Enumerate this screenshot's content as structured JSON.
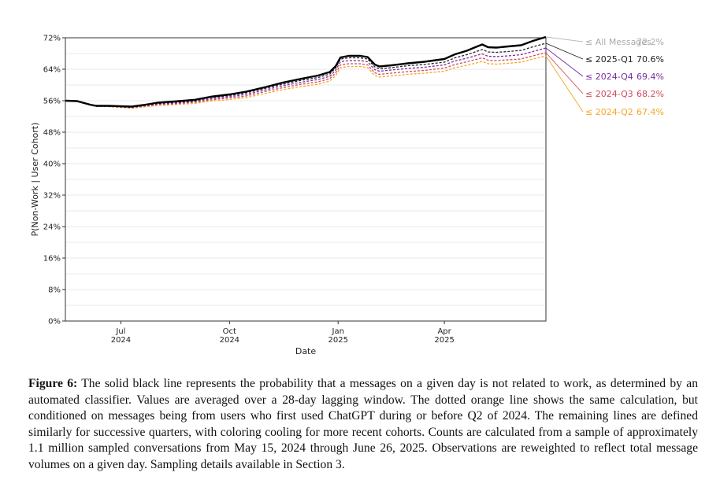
{
  "chart_data": {
    "type": "line",
    "xlabel": "Date",
    "ylabel": "P(Non-Work | User Cohort)",
    "ylim": [
      0,
      72
    ],
    "yticks": [
      0,
      8,
      16,
      24,
      32,
      40,
      48,
      56,
      64,
      72
    ],
    "ytick_labels": [
      "0%",
      "8%",
      "16%",
      "24%",
      "32%",
      "40%",
      "48%",
      "56%",
      "64%",
      "72%"
    ],
    "xlim": [
      "2024-05-15",
      "2025-06-26"
    ],
    "xticks": [
      {
        "date": "2024-07-01",
        "month": "Jul",
        "year": "2024"
      },
      {
        "date": "2024-10-01",
        "month": "Oct",
        "year": "2024"
      },
      {
        "date": "2025-01-01",
        "month": "Jan",
        "year": "2025"
      },
      {
        "date": "2025-04-01",
        "month": "Apr",
        "year": "2025"
      }
    ],
    "grid": true,
    "legend_placement": "right",
    "series": [
      {
        "name": "≤ All Messages",
        "final_label": "72.2%",
        "color": "#000000",
        "style": "solid",
        "points": [
          [
            "2024-05-15",
            56.0
          ],
          [
            "2024-05-25",
            55.9
          ],
          [
            "2024-06-05",
            55.0
          ],
          [
            "2024-06-10",
            54.7
          ],
          [
            "2024-06-20",
            54.7
          ],
          [
            "2024-06-30",
            54.6
          ],
          [
            "2024-07-10",
            54.5
          ],
          [
            "2024-07-20",
            54.9
          ],
          [
            "2024-08-01",
            55.5
          ],
          [
            "2024-08-15",
            55.8
          ],
          [
            "2024-09-01",
            56.2
          ],
          [
            "2024-09-15",
            57.0
          ],
          [
            "2024-10-01",
            57.6
          ],
          [
            "2024-10-15",
            58.3
          ],
          [
            "2024-11-01",
            59.5
          ],
          [
            "2024-11-15",
            60.6
          ],
          [
            "2024-12-01",
            61.6
          ],
          [
            "2024-12-15",
            62.4
          ],
          [
            "2024-12-25",
            63.3
          ],
          [
            "2024-12-30",
            64.8
          ],
          [
            "2025-01-03",
            67.0
          ],
          [
            "2025-01-10",
            67.4
          ],
          [
            "2025-01-20",
            67.4
          ],
          [
            "2025-01-26",
            67.1
          ],
          [
            "2025-02-01",
            65.2
          ],
          [
            "2025-02-05",
            64.7
          ],
          [
            "2025-02-15",
            65.0
          ],
          [
            "2025-03-01",
            65.5
          ],
          [
            "2025-03-15",
            65.9
          ],
          [
            "2025-04-01",
            66.6
          ],
          [
            "2025-04-10",
            67.8
          ],
          [
            "2025-04-20",
            68.7
          ],
          [
            "2025-04-28",
            69.7
          ],
          [
            "2025-05-03",
            70.3
          ],
          [
            "2025-05-08",
            69.6
          ],
          [
            "2025-05-15",
            69.5
          ],
          [
            "2025-05-25",
            69.8
          ],
          [
            "2025-06-05",
            70.1
          ],
          [
            "2025-06-15",
            71.2
          ],
          [
            "2025-06-26",
            72.2
          ]
        ]
      },
      {
        "name": "≤ 2025-Q1",
        "final_label": "70.6%",
        "color": "#222222",
        "style": "dashed",
        "points": [
          [
            "2024-05-15",
            56.0
          ],
          [
            "2024-05-25",
            55.8
          ],
          [
            "2024-06-05",
            54.9
          ],
          [
            "2024-06-10",
            54.6
          ],
          [
            "2024-06-20",
            54.6
          ],
          [
            "2024-06-30",
            54.5
          ],
          [
            "2024-07-10",
            54.4
          ],
          [
            "2024-07-20",
            54.8
          ],
          [
            "2024-08-01",
            55.3
          ],
          [
            "2024-08-15",
            55.6
          ],
          [
            "2024-09-01",
            56.0
          ],
          [
            "2024-09-15",
            56.8
          ],
          [
            "2024-10-01",
            57.3
          ],
          [
            "2024-10-15",
            58.0
          ],
          [
            "2024-11-01",
            59.2
          ],
          [
            "2024-11-15",
            60.2
          ],
          [
            "2024-12-01",
            61.2
          ],
          [
            "2024-12-15",
            61.9
          ],
          [
            "2024-12-25",
            62.8
          ],
          [
            "2024-12-30",
            64.4
          ],
          [
            "2025-01-03",
            66.6
          ],
          [
            "2025-01-10",
            66.9
          ],
          [
            "2025-01-20",
            66.9
          ],
          [
            "2025-01-26",
            66.6
          ],
          [
            "2025-02-01",
            64.6
          ],
          [
            "2025-02-05",
            64.1
          ],
          [
            "2025-02-15",
            64.4
          ],
          [
            "2025-03-01",
            64.9
          ],
          [
            "2025-03-15",
            65.2
          ],
          [
            "2025-04-01",
            65.8
          ],
          [
            "2025-04-10",
            66.9
          ],
          [
            "2025-04-20",
            67.7
          ],
          [
            "2025-04-28",
            68.5
          ],
          [
            "2025-05-03",
            69.0
          ],
          [
            "2025-05-08",
            68.4
          ],
          [
            "2025-05-15",
            68.3
          ],
          [
            "2025-05-25",
            68.5
          ],
          [
            "2025-06-05",
            68.8
          ],
          [
            "2025-06-15",
            69.7
          ],
          [
            "2025-06-26",
            70.6
          ]
        ]
      },
      {
        "name": "≤ 2024-Q4",
        "final_label": "69.4%",
        "color": "#7b2d9e",
        "style": "dashed",
        "points": [
          [
            "2024-05-15",
            56.0
          ],
          [
            "2024-05-25",
            55.8
          ],
          [
            "2024-06-05",
            54.9
          ],
          [
            "2024-06-10",
            54.6
          ],
          [
            "2024-06-20",
            54.6
          ],
          [
            "2024-06-30",
            54.5
          ],
          [
            "2024-07-10",
            54.3
          ],
          [
            "2024-07-20",
            54.7
          ],
          [
            "2024-08-01",
            55.2
          ],
          [
            "2024-08-15",
            55.4
          ],
          [
            "2024-09-01",
            55.8
          ],
          [
            "2024-09-15",
            56.5
          ],
          [
            "2024-10-01",
            57.0
          ],
          [
            "2024-10-15",
            57.6
          ],
          [
            "2024-11-01",
            58.8
          ],
          [
            "2024-11-15",
            59.8
          ],
          [
            "2024-12-01",
            60.7
          ],
          [
            "2024-12-15",
            61.4
          ],
          [
            "2024-12-25",
            62.2
          ],
          [
            "2024-12-30",
            63.8
          ],
          [
            "2025-01-03",
            65.9
          ],
          [
            "2025-01-10",
            66.2
          ],
          [
            "2025-01-20",
            66.2
          ],
          [
            "2025-01-26",
            65.9
          ],
          [
            "2025-02-01",
            63.9
          ],
          [
            "2025-02-05",
            63.5
          ],
          [
            "2025-02-15",
            63.8
          ],
          [
            "2025-03-01",
            64.2
          ],
          [
            "2025-03-15",
            64.5
          ],
          [
            "2025-04-01",
            65.1
          ],
          [
            "2025-04-10",
            66.1
          ],
          [
            "2025-04-20",
            66.8
          ],
          [
            "2025-04-28",
            67.5
          ],
          [
            "2025-05-03",
            67.9
          ],
          [
            "2025-05-08",
            67.3
          ],
          [
            "2025-05-15",
            67.2
          ],
          [
            "2025-05-25",
            67.4
          ],
          [
            "2025-06-05",
            67.7
          ],
          [
            "2025-06-15",
            68.5
          ],
          [
            "2025-06-26",
            69.4
          ]
        ]
      },
      {
        "name": "≤ 2024-Q3",
        "final_label": "68.2%",
        "color": "#d1495b",
        "style": "dashed",
        "points": [
          [
            "2024-05-15",
            56.0
          ],
          [
            "2024-05-25",
            55.8
          ],
          [
            "2024-06-05",
            54.9
          ],
          [
            "2024-06-10",
            54.6
          ],
          [
            "2024-06-20",
            54.6
          ],
          [
            "2024-06-30",
            54.4
          ],
          [
            "2024-07-10",
            54.2
          ],
          [
            "2024-07-20",
            54.6
          ],
          [
            "2024-08-01",
            55.0
          ],
          [
            "2024-08-15",
            55.2
          ],
          [
            "2024-09-01",
            55.6
          ],
          [
            "2024-09-15",
            56.2
          ],
          [
            "2024-10-01",
            56.7
          ],
          [
            "2024-10-15",
            57.2
          ],
          [
            "2024-11-01",
            58.4
          ],
          [
            "2024-11-15",
            59.3
          ],
          [
            "2024-12-01",
            60.2
          ],
          [
            "2024-12-15",
            60.8
          ],
          [
            "2024-12-25",
            61.6
          ],
          [
            "2024-12-30",
            63.1
          ],
          [
            "2025-01-03",
            65.1
          ],
          [
            "2025-01-10",
            65.4
          ],
          [
            "2025-01-20",
            65.4
          ],
          [
            "2025-01-26",
            65.1
          ],
          [
            "2025-02-01",
            63.1
          ],
          [
            "2025-02-05",
            62.7
          ],
          [
            "2025-02-15",
            63.0
          ],
          [
            "2025-03-01",
            63.4
          ],
          [
            "2025-03-15",
            63.7
          ],
          [
            "2025-04-01",
            64.3
          ],
          [
            "2025-04-10",
            65.2
          ],
          [
            "2025-04-20",
            65.9
          ],
          [
            "2025-04-28",
            66.5
          ],
          [
            "2025-05-03",
            66.9
          ],
          [
            "2025-05-08",
            66.3
          ],
          [
            "2025-05-15",
            66.2
          ],
          [
            "2025-05-25",
            66.4
          ],
          [
            "2025-06-05",
            66.6
          ],
          [
            "2025-06-15",
            67.4
          ],
          [
            "2025-06-26",
            68.2
          ]
        ]
      },
      {
        "name": "≤ 2024-Q2",
        "final_label": "67.4%",
        "color": "#f5a623",
        "style": "dashed",
        "points": [
          [
            "2024-05-15",
            56.0
          ],
          [
            "2024-05-25",
            55.8
          ],
          [
            "2024-06-05",
            54.9
          ],
          [
            "2024-06-10",
            54.6
          ],
          [
            "2024-06-20",
            54.5
          ],
          [
            "2024-06-30",
            54.3
          ],
          [
            "2024-07-10",
            54.1
          ],
          [
            "2024-07-20",
            54.4
          ],
          [
            "2024-08-01",
            54.8
          ],
          [
            "2024-08-15",
            55.0
          ],
          [
            "2024-09-01",
            55.3
          ],
          [
            "2024-09-15",
            55.9
          ],
          [
            "2024-10-01",
            56.3
          ],
          [
            "2024-10-15",
            56.8
          ],
          [
            "2024-11-01",
            57.9
          ],
          [
            "2024-11-15",
            58.8
          ],
          [
            "2024-12-01",
            59.6
          ],
          [
            "2024-12-15",
            60.2
          ],
          [
            "2024-12-25",
            61.0
          ],
          [
            "2024-12-30",
            62.4
          ],
          [
            "2025-01-03",
            64.4
          ],
          [
            "2025-01-10",
            64.7
          ],
          [
            "2025-01-20",
            64.7
          ],
          [
            "2025-01-26",
            64.4
          ],
          [
            "2025-02-01",
            62.4
          ],
          [
            "2025-02-05",
            62.0
          ],
          [
            "2025-02-15",
            62.3
          ],
          [
            "2025-03-01",
            62.7
          ],
          [
            "2025-03-15",
            63.0
          ],
          [
            "2025-04-01",
            63.5
          ],
          [
            "2025-04-10",
            64.4
          ],
          [
            "2025-04-20",
            65.0
          ],
          [
            "2025-04-28",
            65.6
          ],
          [
            "2025-05-03",
            66.0
          ],
          [
            "2025-05-08",
            65.4
          ],
          [
            "2025-05-15",
            65.3
          ],
          [
            "2025-05-25",
            65.5
          ],
          [
            "2025-06-05",
            65.8
          ],
          [
            "2025-06-15",
            66.6
          ],
          [
            "2025-06-26",
            67.4
          ]
        ]
      }
    ]
  },
  "caption": {
    "label": "Figure 6:",
    "text": " The solid black line represents the probability that a messages on a given day is not related to work, as determined by an automated classifier. Values are averaged over a 28-day lagging window. The dotted orange line shows the same calculation, but conditioned on messages being from users who first used ChatGPT during or before Q2 of 2024. The remaining lines are defined similarly for successive quarters, with coloring cooling for more recent cohorts. Counts are calculated from a sample of approximately 1.1 million sampled conversations from May 15, 2024 through June 26, 2025. Observations are reweighted to reflect total message volumes on a given day. Sampling details available in Section 3."
  }
}
